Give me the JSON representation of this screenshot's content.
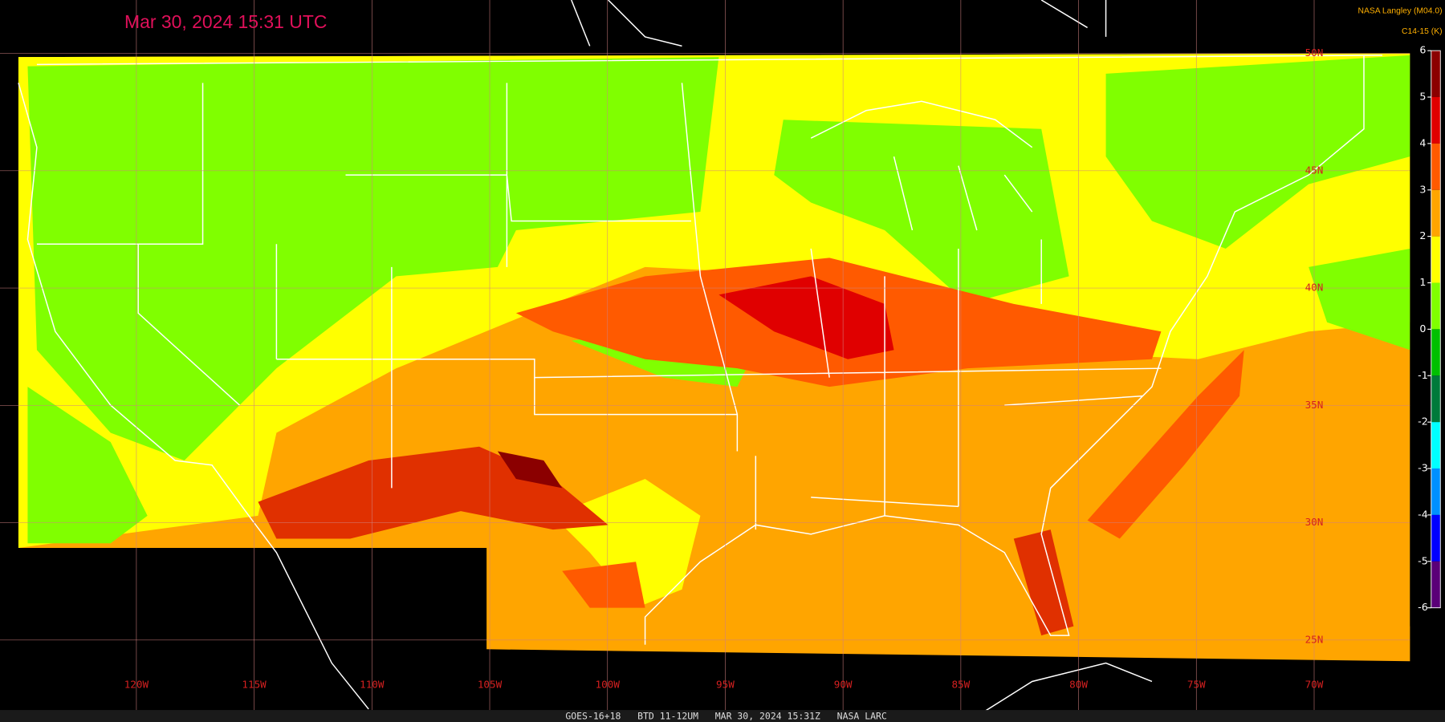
{
  "header": {
    "title": "Mar 30, 2024 15:31 UTC",
    "credit": "NASA Langley (M04.0)"
  },
  "colorbar": {
    "title": "C14-15 (K)",
    "ticks": [
      6,
      5,
      4,
      3,
      2,
      1,
      0,
      -1,
      -2,
      -3,
      -4,
      -5,
      -6
    ],
    "colors": [
      "#8b0000",
      "#e00000",
      "#ff5a00",
      "#ffa500",
      "#ffff00",
      "#80ff00",
      "#00c000",
      "#007a3a",
      "#00ffff",
      "#0090ff",
      "#0000ff",
      "#5a0078"
    ]
  },
  "grid": {
    "lat_labels": [
      "50N",
      "45N",
      "40N",
      "35N",
      "30N",
      "25N"
    ],
    "lon_labels": [
      "120W",
      "115W",
      "110W",
      "105W",
      "100W",
      "95W",
      "90W",
      "85W",
      "80W",
      "75W",
      "70W"
    ]
  },
  "footer": {
    "text": "GOES-16+18   BTD 11-12UM   MAR 30, 2024 15:31Z   NASA LARC"
  }
}
